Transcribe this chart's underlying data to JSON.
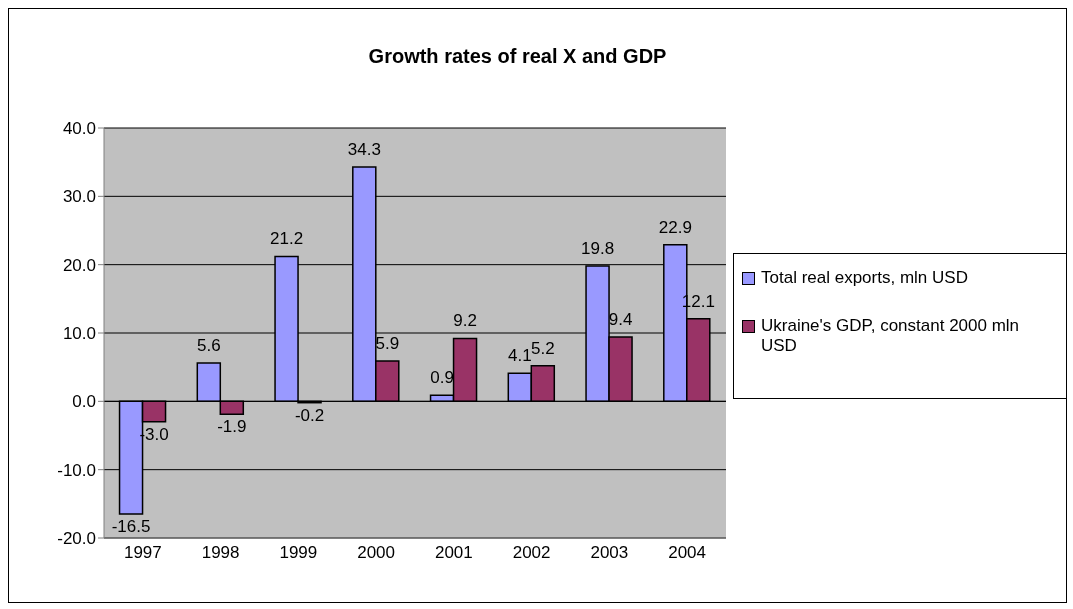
{
  "chart_data": {
    "type": "bar",
    "title": "Growth rates of real X and GDP",
    "categories": [
      "1997",
      "1998",
      "1999",
      "2000",
      "2001",
      "2002",
      "2003",
      "2004"
    ],
    "series": [
      {
        "name": "Total real exports, mln USD",
        "color": "#9999ff",
        "values": [
          -16.5,
          5.6,
          21.2,
          34.3,
          0.9,
          4.1,
          19.8,
          22.9
        ],
        "value_labels": [
          "-16.5",
          "5.6",
          "21.2",
          "34.3",
          "0.9",
          "4.1",
          "19.8",
          "22.9"
        ]
      },
      {
        "name": "Ukraine's GDP, constant 2000 mln USD",
        "color": "#993366",
        "values": [
          -3.0,
          -1.9,
          -0.2,
          5.9,
          9.2,
          5.2,
          9.4,
          12.1
        ],
        "value_labels": [
          "-3.0",
          "-1.9",
          "-0.2",
          "5.9",
          "9.2",
          "5.2",
          "9.4",
          "12.1"
        ]
      }
    ],
    "ylim": [
      -20,
      40
    ],
    "yticks": [
      {
        "value": -20,
        "label": "-20.0"
      },
      {
        "value": -10,
        "label": "-10.0"
      },
      {
        "value": 0,
        "label": "0.0"
      },
      {
        "value": 10,
        "label": "10.0"
      },
      {
        "value": 20,
        "label": "20.0"
      },
      {
        "value": 30,
        "label": "30.0"
      },
      {
        "value": 40,
        "label": "40.0"
      }
    ],
    "grid": "y",
    "legend": "right"
  }
}
